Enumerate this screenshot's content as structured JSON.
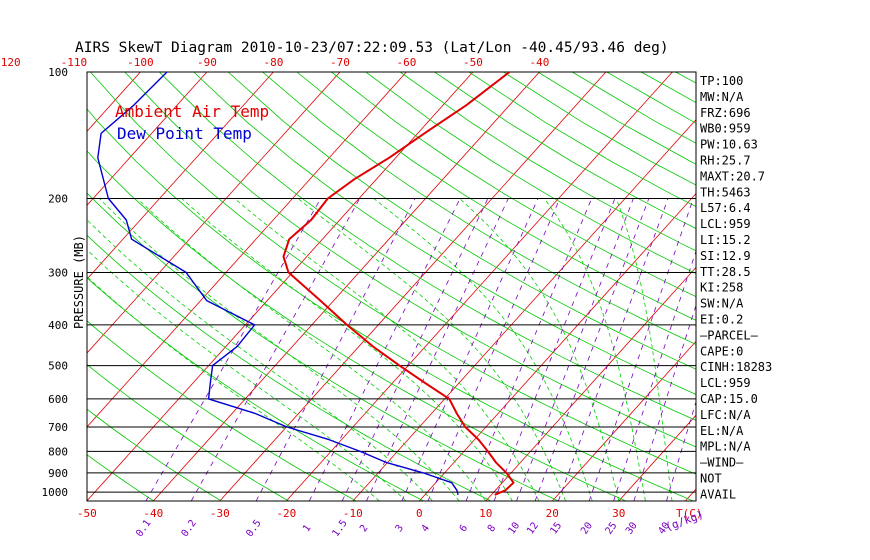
{
  "chart_data": {
    "type": "line",
    "title": "AIRS SkewT Diagram 2010-10-23/07:22:09.53 (Lat/Lon -40.45/93.46 deg)",
    "ylabel": "PRESSURE (MB)",
    "xlabel": "T(C)",
    "mixing_ratio_unit": "(g/kg)",
    "ylim": [
      1050,
      100
    ],
    "y_scale": "log",
    "grid": true,
    "legend_position": "top-left",
    "pressure_ticks": [
      100,
      200,
      300,
      400,
      500,
      600,
      700,
      800,
      900,
      1000
    ],
    "top_temp_ticks": [
      -120,
      -110,
      -100,
      -90,
      -80,
      -70,
      -60,
      -50,
      -40
    ],
    "bottom_temp_ticks": [
      -50,
      -40,
      -30,
      -20,
      -10,
      0,
      10,
      20,
      30
    ],
    "mixing_ratio_ticks": [
      "0.1",
      "0.2",
      "0.5",
      "1",
      "1.5",
      "2",
      "3",
      "4",
      "6",
      "8",
      "10",
      "12",
      "15",
      "20",
      "25",
      "30",
      "40"
    ],
    "series": [
      {
        "name": "Ambient Air Temp",
        "color": "#e00000",
        "points": [
          {
            "p": 1015,
            "t": 10.5
          },
          {
            "p": 990,
            "t": 11.5
          },
          {
            "p": 950,
            "t": 11.7
          },
          {
            "p": 900,
            "t": 9.3
          },
          {
            "p": 850,
            "t": 6.3
          },
          {
            "p": 800,
            "t": 3.6
          },
          {
            "p": 750,
            "t": 0.6
          },
          {
            "p": 700,
            "t": -3.1
          },
          {
            "p": 650,
            "t": -6.2
          },
          {
            "p": 600,
            "t": -9.3
          },
          {
            "p": 550,
            "t": -15.1
          },
          {
            "p": 500,
            "t": -21.3
          },
          {
            "p": 450,
            "t": -27.9
          },
          {
            "p": 400,
            "t": -34.7
          },
          {
            "p": 350,
            "t": -42.0
          },
          {
            "p": 300,
            "t": -50.6
          },
          {
            "p": 275,
            "t": -53.5
          },
          {
            "p": 250,
            "t": -55.0
          },
          {
            "p": 225,
            "t": -54.3
          },
          {
            "p": 200,
            "t": -54.7
          },
          {
            "p": 180,
            "t": -53.3
          },
          {
            "p": 160,
            "t": -51.0
          },
          {
            "p": 140,
            "t": -49.0
          },
          {
            "p": 120,
            "t": -46.5
          },
          {
            "p": 100,
            "t": -44.5
          }
        ]
      },
      {
        "name": "Dew Point Temp",
        "color": "#0000d0",
        "points": [
          {
            "p": 1015,
            "t": 5.0
          },
          {
            "p": 990,
            "t": 4.2
          },
          {
            "p": 950,
            "t": 2.4
          },
          {
            "p": 900,
            "t": -3.2
          },
          {
            "p": 850,
            "t": -10.2
          },
          {
            "p": 800,
            "t": -15.6
          },
          {
            "p": 750,
            "t": -21.9
          },
          {
            "p": 700,
            "t": -29.9
          },
          {
            "p": 650,
            "t": -36.5
          },
          {
            "p": 600,
            "t": -45.5
          },
          {
            "p": 550,
            "t": -47.4
          },
          {
            "p": 500,
            "t": -49.4
          },
          {
            "p": 450,
            "t": -48.3
          },
          {
            "p": 400,
            "t": -48.6
          },
          {
            "p": 350,
            "t": -59.1
          },
          {
            "p": 300,
            "t": -66.0
          },
          {
            "p": 250,
            "t": -78.7
          },
          {
            "p": 225,
            "t": -82.1
          },
          {
            "p": 200,
            "t": -87.7
          },
          {
            "p": 160,
            "t": -94.8
          },
          {
            "p": 140,
            "t": -97.6
          },
          {
            "p": 120,
            "t": -96.5
          },
          {
            "p": 100,
            "t": -96.0
          }
        ]
      }
    ],
    "indices": [
      "TP:100",
      "MW:N/A",
      "FRZ:696",
      "WB0:959",
      "PW:10.63",
      "RH:25.7",
      "MAXT:20.7",
      "TH:5463",
      "L57:6.4",
      "LCL:959",
      "LI:15.2",
      "SI:12.9",
      "TT:28.5",
      "KI:258",
      "SW:N/A",
      "EI:0.2",
      "–PARCEL–",
      "CAPE:0",
      "CINH:18283",
      "LCL:959",
      "CAP:15.0",
      "LFC:N/A",
      "EL:N/A",
      "MPL:N/A",
      "–WIND–",
      "NOT",
      "AVAIL"
    ],
    "colors": {
      "isotherm": "#e00000",
      "dry_adiabat": "#00c800",
      "moist_adiabat": "#00d000",
      "mixing_ratio": "#7a00c0",
      "isobar": "#000000"
    }
  }
}
